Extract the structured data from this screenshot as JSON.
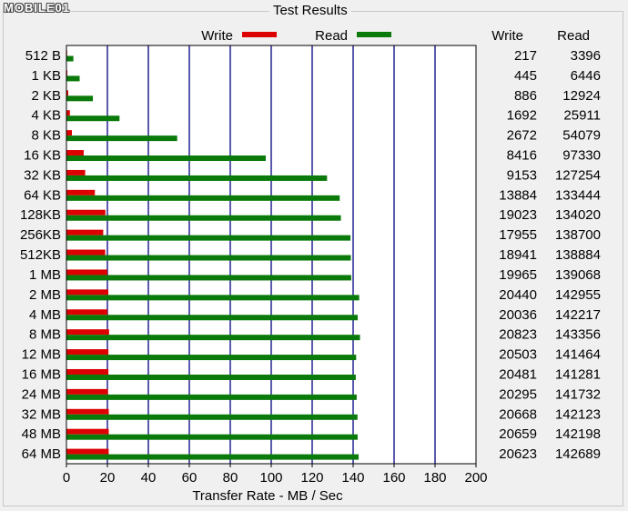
{
  "watermark": "MOBILE01",
  "group_title": "Test Results",
  "colors": {
    "write": "#dd0000",
    "read": "#0a7a0a",
    "grid": "#000080",
    "plot_bg": "#ffffff"
  },
  "table": {
    "write_header": "Write",
    "read_header": "Read"
  },
  "chart_data": {
    "type": "bar",
    "orientation": "horizontal",
    "xlabel": "Transfer Rate - MB / Sec",
    "xlim": [
      0,
      200
    ],
    "xticks": [
      0,
      20,
      40,
      60,
      80,
      100,
      120,
      140,
      160,
      180,
      200
    ],
    "grid": true,
    "legend_position": "top",
    "categories": [
      "512 B",
      "1 KB",
      "2 KB",
      "4 KB",
      "8 KB",
      "16 KB",
      "32 KB",
      "64 KB",
      "128KB",
      "256KB",
      "512KB",
      "1 MB",
      "2 MB",
      "4 MB",
      "8 MB",
      "12 MB",
      "16 MB",
      "24 MB",
      "32 MB",
      "48 MB",
      "64 MB"
    ],
    "series": [
      {
        "name": "Write",
        "values_kb": [
          217,
          445,
          886,
          1692,
          2672,
          8416,
          9153,
          13884,
          19023,
          17955,
          18941,
          19965,
          20440,
          20036,
          20823,
          20503,
          20481,
          20295,
          20668,
          20659,
          20623
        ]
      },
      {
        "name": "Read",
        "values_kb": [
          3396,
          6446,
          12924,
          25911,
          54079,
          97330,
          127254,
          133444,
          134020,
          138700,
          138884,
          139068,
          142955,
          142217,
          143356,
          141464,
          141281,
          141732,
          142123,
          142198,
          142689
        ]
      }
    ]
  }
}
